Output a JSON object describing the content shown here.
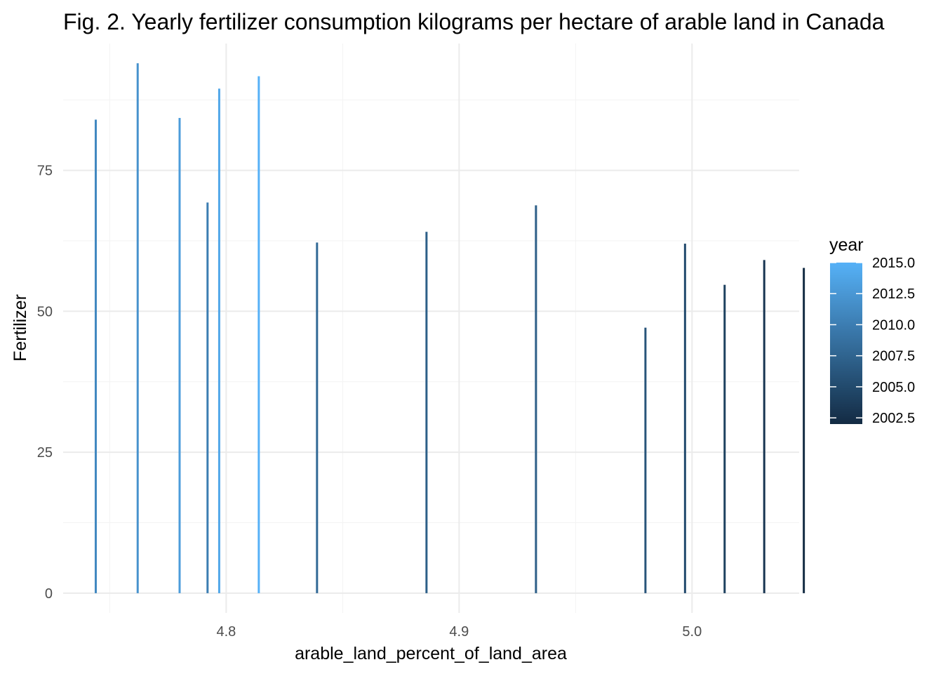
{
  "chart_data": {
    "type": "bar",
    "title": "Fig. 2. Yearly fertilizer consumption kilograms per hectare of arable land in Canada",
    "xlabel": "arable_land_percent_of_land_area",
    "ylabel": "Fertilizer",
    "xlim": [
      4.73,
      5.046
    ],
    "ylim": [
      -3.5,
      97.5
    ],
    "x_ticks": [
      4.8,
      4.9,
      5.0
    ],
    "x_tick_labels": [
      "4.8",
      "4.9",
      "5.0"
    ],
    "y_ticks": [
      0,
      25,
      50,
      75
    ],
    "y_tick_labels": [
      "0",
      "25",
      "50",
      "75"
    ],
    "grid": true,
    "legend": {
      "title": "year",
      "position": "right",
      "type": "colorbar",
      "range": [
        2002,
        2015
      ],
      "breaks": [
        2015.0,
        2012.5,
        2010.0,
        2007.5,
        2005.0,
        2002.5
      ],
      "labels": [
        "2015.0",
        "2012.5",
        "2010.0",
        "2007.5",
        "2005.0",
        "2002.5"
      ],
      "color_low": "#132B43",
      "color_high": "#56B1F7"
    },
    "points": [
      {
        "x": 4.744,
        "y": 84.0,
        "year": 2011
      },
      {
        "x": 4.762,
        "y": 94.0,
        "year": 2012
      },
      {
        "x": 4.78,
        "y": 84.3,
        "year": 2013
      },
      {
        "x": 4.792,
        "y": 69.3,
        "year": 2010
      },
      {
        "x": 4.797,
        "y": 89.5,
        "year": 2014
      },
      {
        "x": 4.814,
        "y": 91.7,
        "year": 2015
      },
      {
        "x": 4.839,
        "y": 62.2,
        "year": 2008
      },
      {
        "x": 4.886,
        "y": 64.1,
        "year": 2007
      },
      {
        "x": 4.933,
        "y": 68.8,
        "year": 2007
      },
      {
        "x": 4.98,
        "y": 47.1,
        "year": 2006
      },
      {
        "x": 4.997,
        "y": 62.0,
        "year": 2005
      },
      {
        "x": 5.014,
        "y": 54.7,
        "year": 2004
      },
      {
        "x": 5.031,
        "y": 59.1,
        "year": 2003
      },
      {
        "x": 5.048,
        "y": 57.7,
        "year": 2002
      }
    ]
  }
}
